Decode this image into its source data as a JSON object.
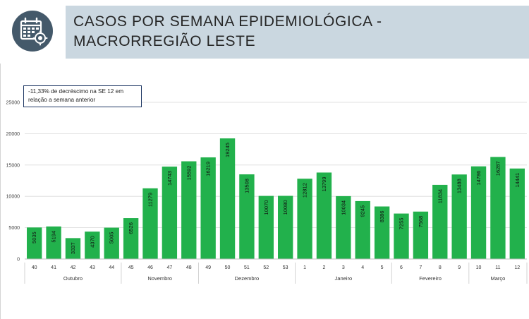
{
  "header": {
    "title_line1": "CASOS POR SEMANA EPIDEMIOLÓGICA -",
    "title_line2": "MACRORREGIÃO LESTE",
    "icon": "calendar-icon"
  },
  "annotation": {
    "line1": "-11,33% de decréscimo na SE 12 em",
    "line2": "relação a semana anterior"
  },
  "colors": {
    "bar": "#22b14c",
    "header_band": "#cad7e0",
    "icon_bg": "#44596a",
    "annotation_border": "#1f3864"
  },
  "chart_data": {
    "type": "bar",
    "title": "",
    "xlabel": "",
    "ylabel": "",
    "ylim": [
      0,
      25000
    ],
    "yticks": [
      0,
      5000,
      10000,
      15000,
      20000,
      25000
    ],
    "grid": true,
    "categories": [
      "40",
      "41",
      "42",
      "43",
      "44",
      "45",
      "46",
      "47",
      "48",
      "49",
      "50",
      "51",
      "52",
      "53",
      "1",
      "2",
      "3",
      "4",
      "5",
      "6",
      "7",
      "8",
      "9",
      "10",
      "11",
      "12"
    ],
    "values": [
      5035,
      5194,
      3337,
      4370,
      5005,
      6526,
      11279,
      14743,
      15592,
      16219,
      19245,
      13508,
      10070,
      10080,
      12812,
      13799,
      10034,
      9245,
      8386,
      7255,
      7568,
      11834,
      13488,
      14786,
      16287,
      14441
    ],
    "month_groups": [
      {
        "label": "Outubro",
        "start": 0,
        "end": 4
      },
      {
        "label": "Novembro",
        "start": 5,
        "end": 8
      },
      {
        "label": "Dezembro",
        "start": 9,
        "end": 13
      },
      {
        "label": "Janeiro",
        "start": 14,
        "end": 18
      },
      {
        "label": "Fevereiro",
        "start": 19,
        "end": 22
      },
      {
        "label": "Março",
        "start": 23,
        "end": 25
      }
    ]
  }
}
